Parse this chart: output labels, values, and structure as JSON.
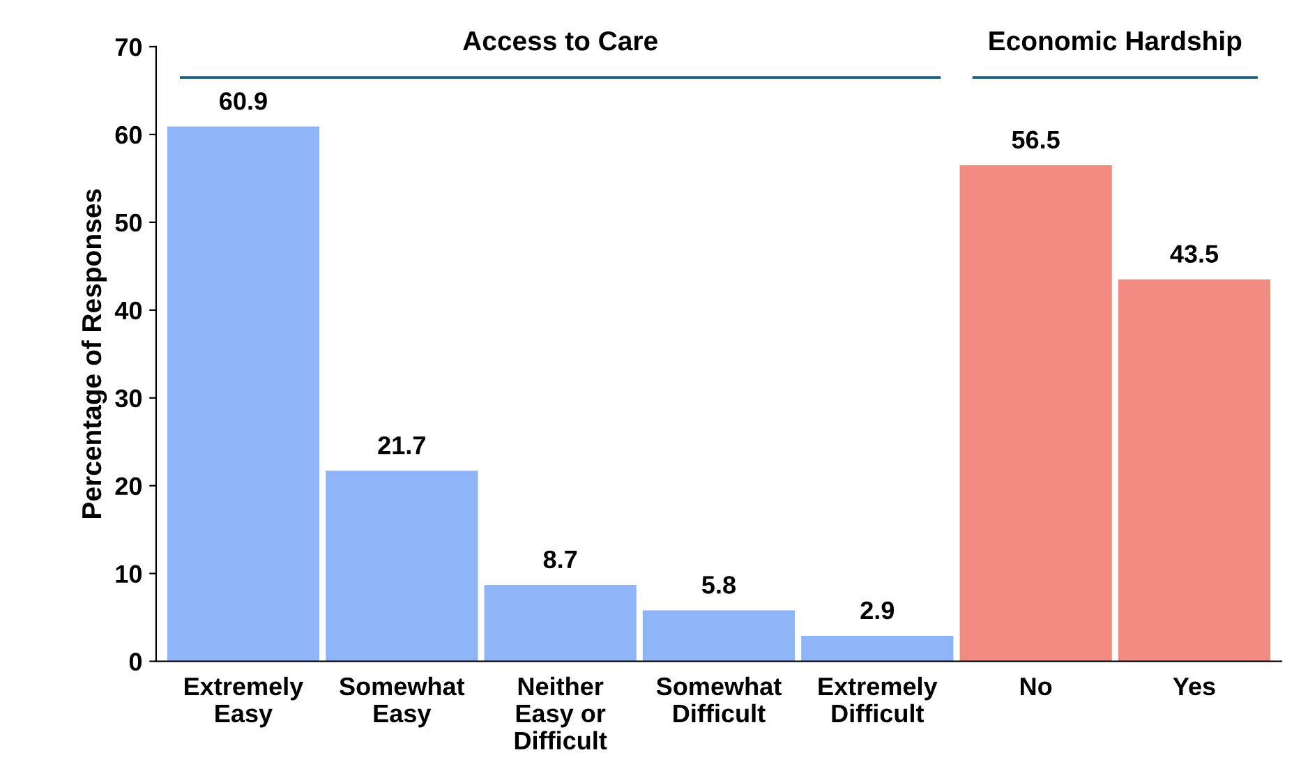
{
  "chart_data": {
    "type": "bar",
    "ylabel": "Percentage of Responses",
    "categories": [
      "Extremely\nEasy",
      "Somewhat\nEasy",
      "Neither\nEasy or\nDifficult",
      "Somewhat\nDifficult",
      "Extremely\nDifficult",
      "No",
      "Yes"
    ],
    "values": [
      60.9,
      21.7,
      8.7,
      5.8,
      2.9,
      56.5,
      43.5
    ],
    "colors": [
      "#8fb4f8",
      "#8fb4f8",
      "#8fb4f8",
      "#8fb4f8",
      "#8fb4f8",
      "#f28b82",
      "#f28b82"
    ],
    "annotations": [
      "Access to Care",
      "Economic Hardship"
    ],
    "ylim": [
      0,
      70
    ],
    "yticks": [
      0,
      10,
      20,
      30,
      40,
      50,
      60,
      70
    ],
    "data_labels": true,
    "grid": false,
    "legend": false
  }
}
